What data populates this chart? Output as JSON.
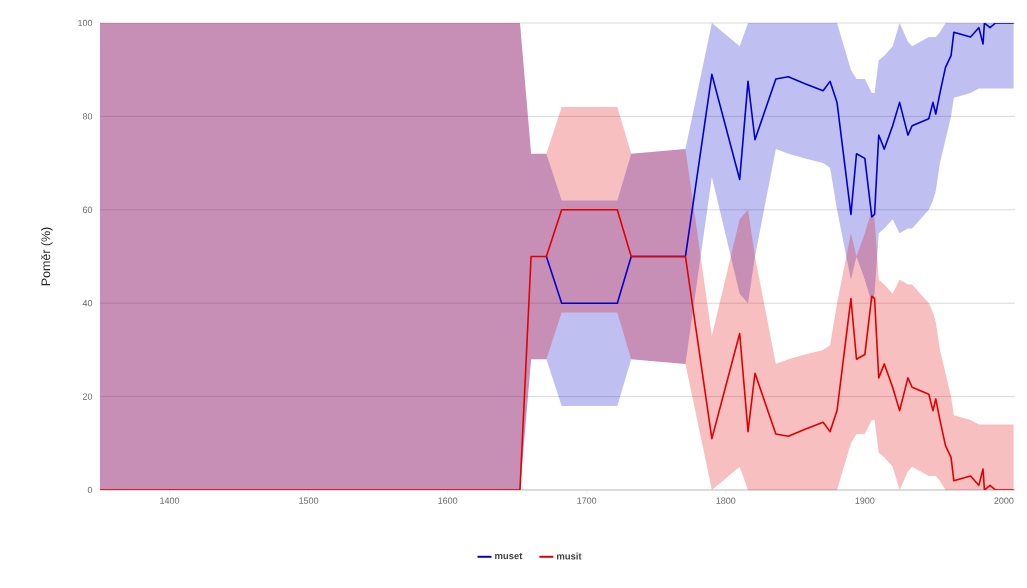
{
  "chart_data": {
    "type": "line",
    "ylabel": "Poměr (%)",
    "x": [
      1350,
      1652,
      1660,
      1671,
      1682,
      1722,
      1732,
      1771,
      1790,
      1810,
      1816,
      1821,
      1836,
      1845,
      1857,
      1870,
      1875,
      1880,
      1890,
      1894,
      1900,
      1905,
      1907,
      1910,
      1914,
      1920,
      1925,
      1931,
      1934,
      1946,
      1949,
      1951,
      1954,
      1958,
      1962,
      1964,
      1976,
      1982,
      1985,
      1986,
      1990,
      1994,
      2007
    ],
    "series": [
      {
        "name": "muset",
        "color": "#0000cc",
        "values": [
          null,
          null,
          null,
          50,
          40,
          40,
          50,
          50,
          89,
          66.5,
          87.5,
          75,
          88,
          88.5,
          87,
          85.5,
          87.5,
          83,
          59,
          72,
          71,
          58.5,
          59,
          76,
          73,
          78,
          83,
          76,
          78,
          79.5,
          83,
          80.5,
          85,
          90.5,
          93,
          98,
          97,
          99,
          95.5,
          100,
          99,
          100,
          100
        ],
        "lower": [
          0,
          0,
          28,
          28,
          18,
          18,
          28,
          27,
          67,
          42,
          40,
          50,
          73,
          72,
          71,
          70,
          69,
          60,
          45,
          50,
          45,
          40,
          42,
          55,
          56,
          58,
          55,
          56,
          56,
          60,
          62,
          64,
          70,
          75,
          80,
          84,
          85,
          86,
          86,
          86,
          86,
          86,
          86
        ],
        "upper": [
          100,
          100,
          72,
          72,
          62,
          62,
          72,
          73,
          100,
          95,
          100,
          100,
          100,
          100,
          100,
          100,
          100,
          100,
          90,
          88,
          88,
          85,
          85,
          92,
          93,
          95,
          100,
          96,
          95,
          97,
          97,
          97,
          98,
          100,
          100,
          100,
          100,
          100,
          100,
          100,
          100,
          100,
          100
        ]
      },
      {
        "name": "musit",
        "color": "#e00000",
        "values": [
          0,
          0,
          50,
          50,
          60,
          60,
          50,
          50,
          11,
          33.5,
          12.5,
          25,
          12,
          11.5,
          13,
          14.5,
          12.5,
          17,
          41,
          28,
          29,
          41.5,
          41,
          24,
          27,
          22,
          17,
          24,
          22,
          20.5,
          17,
          19.5,
          15,
          9.5,
          7,
          2,
          3,
          1,
          4.5,
          0,
          1,
          0,
          0
        ],
        "lower": [
          0,
          0,
          28,
          28,
          38,
          38,
          28,
          27,
          0,
          5,
          0,
          0,
          0,
          0,
          0,
          0,
          0,
          0,
          10,
          12,
          12,
          15,
          15,
          8,
          7,
          5,
          0,
          4,
          5,
          3,
          3,
          3,
          2,
          0,
          0,
          0,
          0,
          0,
          0,
          0,
          0,
          0,
          0
        ],
        "upper": [
          100,
          100,
          72,
          72,
          82,
          82,
          72,
          73,
          33,
          58,
          60,
          50,
          27,
          28,
          29,
          30,
          31,
          40,
          55,
          50,
          55,
          60,
          58,
          45,
          44,
          42,
          45,
          44,
          44,
          40,
          38,
          36,
          30,
          25,
          20,
          16,
          15,
          14,
          14,
          14,
          14,
          14,
          14
        ]
      }
    ],
    "xlim": [
      1350,
      2008
    ],
    "ylim": [
      0,
      100
    ],
    "xticks": [
      1400,
      1500,
      1600,
      1700,
      1800,
      1900,
      2000
    ],
    "yticks": [
      0,
      20,
      40,
      60,
      80,
      100
    ],
    "grid": "y",
    "legend": "bottom"
  }
}
